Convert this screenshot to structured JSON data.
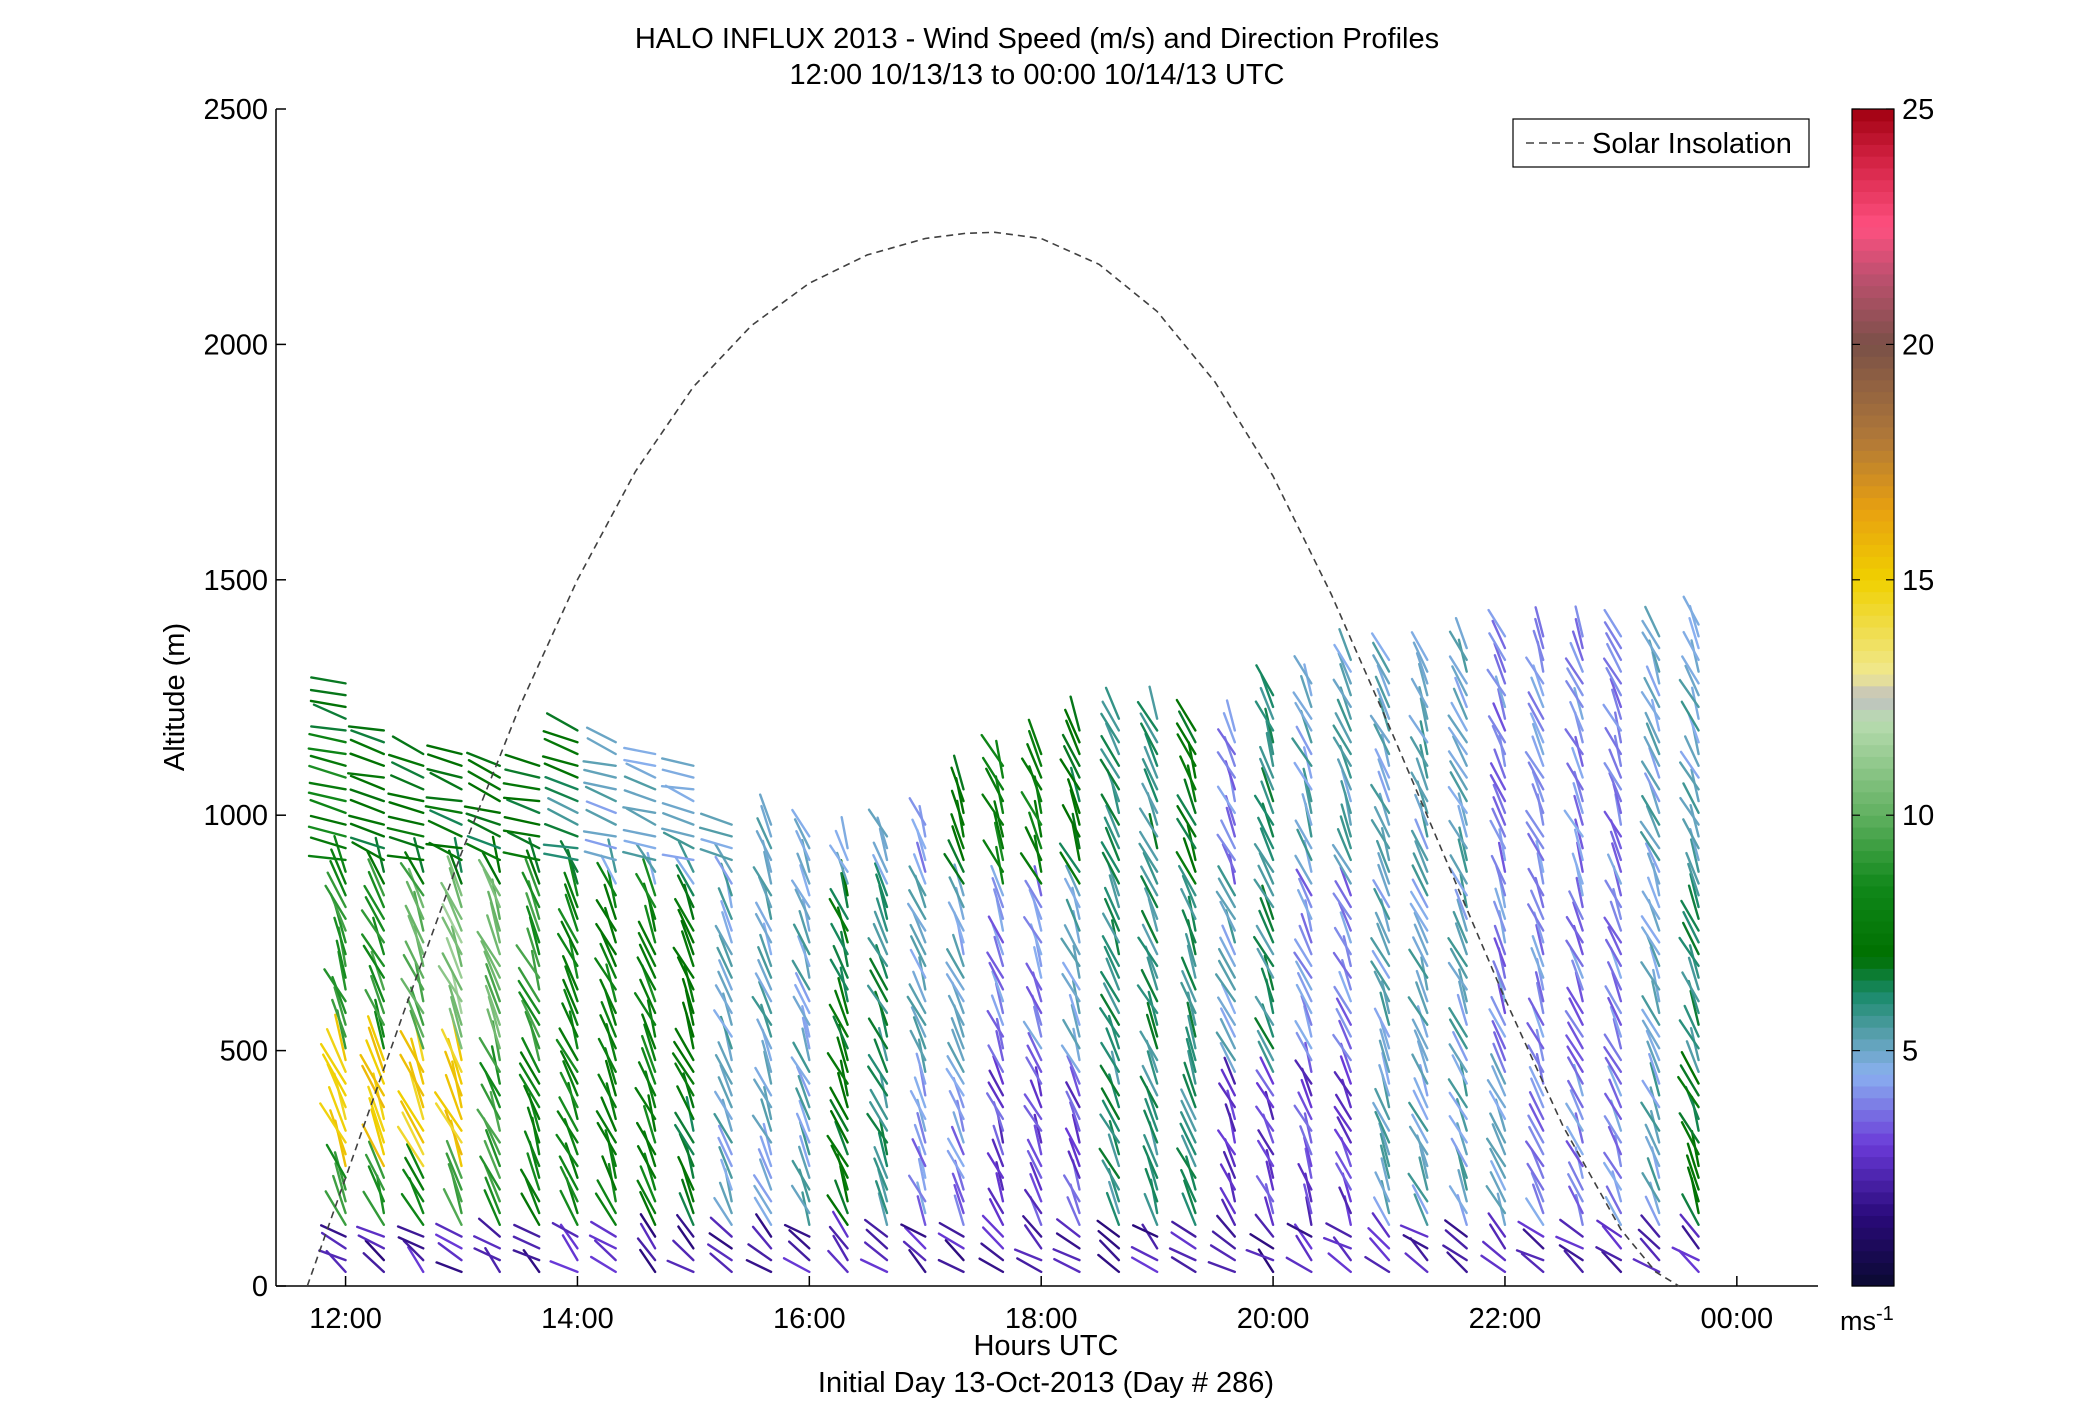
{
  "figure": {
    "title_line1": "HALO INFLUX 2013 - Wind Speed (m/s) and Direction Profiles",
    "title_line2": "12:00 10/13/13 to 00:00 10/14/13  UTC",
    "xlabel": "Hours UTC",
    "xlabel2": "Initial Day 13-Oct-2013 (Day # 286)",
    "ylabel": "Altitude (m)",
    "colorbar_unit": "ms-1",
    "legend_label": "Solar Insolation"
  },
  "chart_data": {
    "type": "scatter",
    "title": "HALO INFLUX 2013 - Wind Speed (m/s) and Direction Profiles",
    "subtitle": "12:00 10/13/13 to 00:00 10/14/13  UTC",
    "xlabel": "Hours UTC",
    "ylabel": "Altitude (m)",
    "x_unit": "hours UTC",
    "xlim": [
      11.4,
      24.7
    ],
    "ylim": [
      0,
      2500
    ],
    "x_ticks": [
      12,
      14,
      16,
      18,
      20,
      22,
      24
    ],
    "x_tick_labels": [
      "12:00",
      "14:00",
      "16:00",
      "18:00",
      "20:00",
      "22:00",
      "00:00"
    ],
    "y_ticks": [
      0,
      500,
      1000,
      1500,
      2000,
      2500
    ],
    "y_tick_labels": [
      "0",
      "500",
      "1000",
      "1500",
      "2000",
      "2500"
    ],
    "colorbar": {
      "label": "ms-1",
      "range": [
        0,
        25
      ],
      "ticks": [
        5,
        10,
        15,
        20,
        25
      ],
      "tick_labels": [
        "5",
        "10",
        "15",
        "20",
        "25"
      ],
      "colormap": [
        [
          0,
          "#0a0a30"
        ],
        [
          1.5,
          "#2a0a7a"
        ],
        [
          3,
          "#6a3ad8"
        ],
        [
          4.5,
          "#8ab0f0"
        ],
        [
          5.3,
          "#5aa0b0"
        ],
        [
          6.2,
          "#1a8a6a"
        ],
        [
          7,
          "#007000"
        ],
        [
          8.5,
          "#10881a"
        ],
        [
          10,
          "#60b060"
        ],
        [
          12,
          "#b8dcb0"
        ],
        [
          12.5,
          "#c0c0c0"
        ],
        [
          13,
          "#f0e890"
        ],
        [
          15,
          "#f0d000"
        ],
        [
          16.5,
          "#e8a010"
        ],
        [
          18,
          "#b07838"
        ],
        [
          20,
          "#7a5048"
        ],
        [
          21.5,
          "#c05070"
        ],
        [
          22.5,
          "#ff5080"
        ],
        [
          24,
          "#d02040"
        ],
        [
          25,
          "#a00010"
        ]
      ]
    },
    "legend": {
      "entries": [
        "Solar Insolation"
      ],
      "placement": "top-right"
    },
    "series": [
      {
        "name": "Solar Insolation",
        "style": "dashed",
        "color": "#404040",
        "x": [
          11.67,
          12.0,
          12.5,
          13.0,
          13.5,
          14.0,
          14.5,
          15.0,
          15.5,
          16.0,
          16.5,
          17.0,
          17.35,
          17.6,
          18.0,
          18.5,
          19.0,
          19.5,
          20.0,
          20.5,
          21.0,
          21.5,
          22.0,
          22.5,
          23.0,
          23.3,
          23.5
        ],
        "y": [
          0,
          230,
          580,
          920,
          1230,
          1500,
          1730,
          1910,
          2040,
          2130,
          2190,
          2225,
          2236,
          2238,
          2225,
          2170,
          2070,
          1920,
          1720,
          1470,
          1190,
          900,
          610,
          340,
          120,
          30,
          0
        ]
      }
    ],
    "wind_barbs": {
      "description": "Vertical profiles of wind direction sticks colored by wind speed (m/s)",
      "profile_times": [
        12.0,
        12.33,
        12.67,
        13.0,
        13.33,
        13.67,
        14.0,
        14.33,
        14.67,
        15.0,
        15.33,
        15.67,
        16.0,
        16.33,
        16.67,
        17.0,
        17.33,
        17.67,
        18.0,
        18.33,
        18.67,
        19.0,
        19.33,
        19.67,
        20.0,
        20.33,
        20.67,
        21.0,
        21.33,
        21.67,
        22.0,
        22.33,
        22.67,
        23.0,
        23.33,
        23.67
      ],
      "profile_tops_m": [
        1300,
        1180,
        1150,
        1140,
        1120,
        1110,
        1190,
        1170,
        1140,
        1110,
        990,
        980,
        960,
        950,
        960,
        1000,
        1060,
        1110,
        1130,
        1200,
        1210,
        1220,
        1200,
        1200,
        1270,
        1300,
        1330,
        1330,
        1350,
        1370,
        1380,
        1380,
        1380,
        1380,
        1400,
        1410
      ],
      "surface_speed_ms": 1.5,
      "low_level_speed_ms": [
        9,
        9,
        8,
        9,
        9,
        8,
        8,
        8,
        8,
        7,
        5,
        5,
        5,
        7,
        6,
        4,
        4,
        3,
        3,
        3,
        6,
        6,
        6,
        3,
        3,
        3,
        3,
        5,
        5,
        5,
        5,
        4,
        4,
        4,
        5,
        7
      ],
      "mid_level_speed_ms": [
        9,
        9,
        10,
        11,
        10,
        9,
        8,
        8,
        8,
        7,
        5,
        5,
        5,
        7,
        6,
        5,
        5,
        4,
        4,
        5,
        6,
        6,
        6,
        5,
        6,
        4,
        4,
        5,
        5,
        5,
        4,
        4,
        4,
        4,
        5,
        6
      ],
      "upper_level_speed_ms": [
        8,
        7,
        7,
        7,
        7,
        7,
        6,
        5,
        5,
        5,
        5,
        5,
        5,
        5,
        5,
        4,
        7,
        8,
        8,
        7,
        6,
        6,
        7,
        4,
        6,
        5,
        5,
        5,
        5,
        5,
        4,
        4,
        4,
        4,
        5,
        5
      ],
      "top_level_speed_ms": [
        7,
        7,
        7,
        7,
        7,
        7,
        7,
        5,
        5,
        5,
        5,
        5,
        5,
        5,
        5,
        4,
        7,
        8,
        8,
        7,
        6,
        6,
        7,
        4,
        6,
        5,
        5,
        5,
        5,
        5,
        4,
        4,
        4,
        4,
        5,
        5
      ],
      "orange_band": {
        "x_range": [
          12.0,
          13.3
        ],
        "alt_range_m": [
          250,
          480
        ],
        "speed_ms": 15
      }
    }
  }
}
